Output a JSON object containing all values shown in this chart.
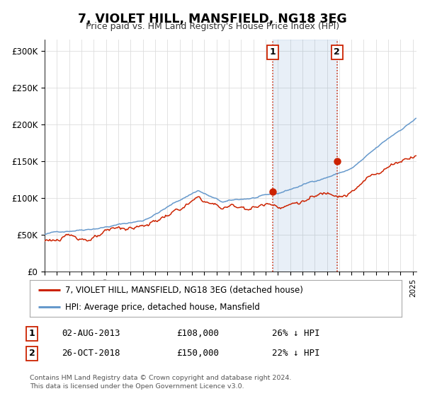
{
  "title": "7, VIOLET HILL, MANSFIELD, NG18 3EG",
  "subtitle": "Price paid vs. HM Land Registry's House Price Index (HPI)",
  "title_fontsize": 13,
  "subtitle_fontsize": 10,
  "ylabel_ticks": [
    "£0",
    "£50K",
    "£100K",
    "£150K",
    "£200K",
    "£250K",
    "£300K"
  ],
  "ytick_values": [
    0,
    50000,
    100000,
    150000,
    200000,
    250000,
    300000
  ],
  "ylim": [
    0,
    315000
  ],
  "xlim_start": 1995.0,
  "xlim_end": 2025.3,
  "hpi_color": "#6699cc",
  "price_color": "#cc2200",
  "hpi_fill_alpha": 0.15,
  "sale1_date": 2013.58,
  "sale1_price": 108000,
  "sale1_label": "1",
  "sale2_date": 2018.82,
  "sale2_price": 150000,
  "sale2_label": "2",
  "sale1_annotation": "02-AUG-2013",
  "sale1_amount": "£108,000",
  "sale1_hpi": "26% ↓ HPI",
  "sale2_annotation": "26-OCT-2018",
  "sale2_amount": "£150,000",
  "sale2_hpi": "22% ↓ HPI",
  "legend_line1": "7, VIOLET HILL, MANSFIELD, NG18 3EG (detached house)",
  "legend_line2": "HPI: Average price, detached house, Mansfield",
  "footer_line1": "Contains HM Land Registry data © Crown copyright and database right 2024.",
  "footer_line2": "This data is licensed under the Open Government Licence v3.0.",
  "background_color": "#ffffff",
  "grid_color": "#dddddd",
  "shade_between_start": 2013.58,
  "shade_between_end": 2018.82
}
